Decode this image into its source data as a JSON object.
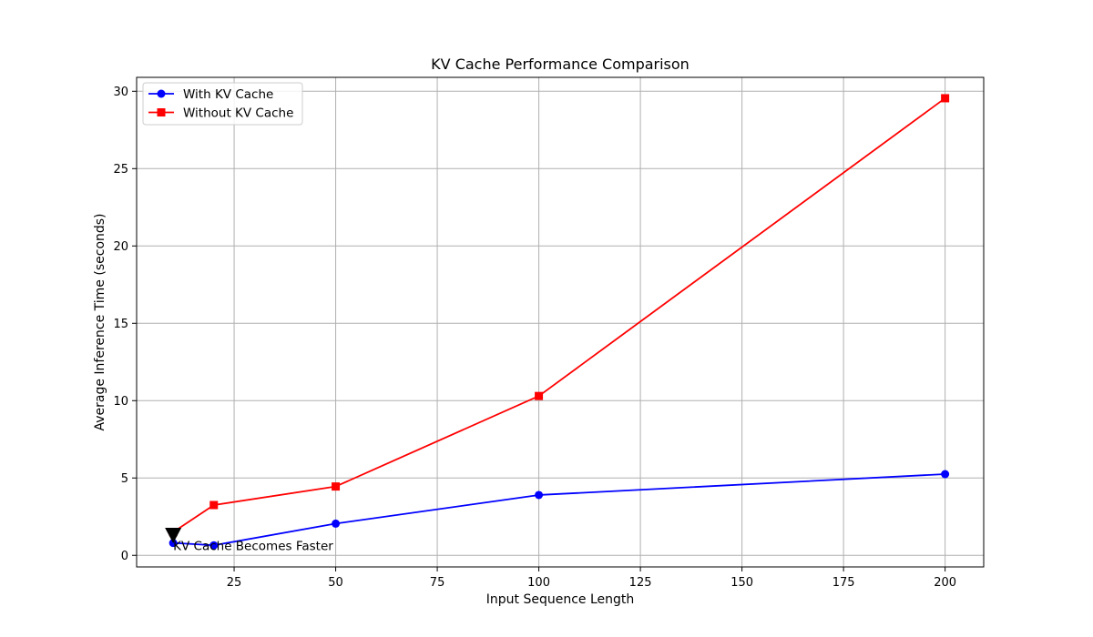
{
  "chart_data": {
    "type": "line",
    "title": "KV Cache Performance Comparison",
    "xlabel": "Input Sequence Length",
    "ylabel": "Average Inference Time (seconds)",
    "xlim": [
      1,
      209.5
    ],
    "ylim": [
      -0.75,
      30.9
    ],
    "xticks": [
      25,
      50,
      75,
      100,
      125,
      150,
      175,
      200
    ],
    "yticks": [
      0,
      5,
      10,
      15,
      20,
      25,
      30
    ],
    "grid": true,
    "legend_position": "upper-left",
    "series": [
      {
        "name": "With KV Cache",
        "color": "#0000ff",
        "marker": "circle",
        "x": [
          10,
          20,
          50,
          100,
          200
        ],
        "y": [
          0.8,
          0.65,
          2.05,
          3.9,
          5.25
        ]
      },
      {
        "name": "Without KV Cache",
        "color": "#ff0000",
        "marker": "square",
        "x": [
          10,
          20,
          50,
          100,
          200
        ],
        "y": [
          1.5,
          3.25,
          4.45,
          10.3,
          29.55
        ]
      }
    ],
    "annotations": [
      {
        "text": "KV Cache Becomes Faster",
        "x": 10,
        "y": 1.25,
        "marker": "triangle-down",
        "color": "#000000"
      }
    ]
  }
}
